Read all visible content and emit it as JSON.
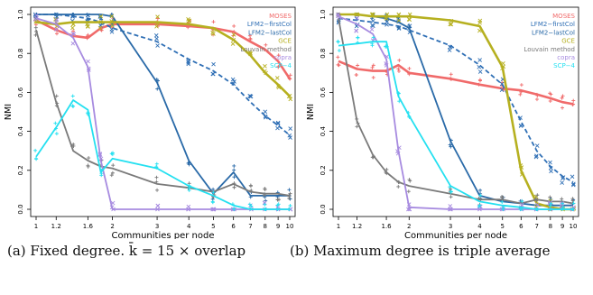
{
  "captions": {
    "a": "(a)  Fixed  degree.  k̄  =  15 × overlap",
    "b": "(b) Maximum degree is triple average"
  },
  "chart_data": [
    {
      "type": "line",
      "xlabel": "Communities per node",
      "ylabel": "NMI",
      "xscale": "log",
      "xlim": [
        1,
        10
      ],
      "ylim": [
        0,
        1
      ],
      "x_ticks": [
        1,
        1.2,
        1.6,
        2,
        3,
        4,
        5,
        6,
        7,
        8,
        9,
        10
      ],
      "y_ticks": [
        0.0,
        0.2,
        0.4,
        0.6,
        0.8,
        1.0
      ],
      "x": [
        1,
        1.2,
        1.4,
        1.6,
        1.8,
        2,
        3,
        4,
        5,
        6,
        7,
        8,
        9,
        10
      ],
      "legend_position": "top-right",
      "series": [
        {
          "name": "MOSES",
          "color": "#f06a6a",
          "dashed": false,
          "values": [
            0.97,
            0.92,
            0.89,
            0.88,
            0.93,
            0.95,
            0.95,
            0.94,
            0.93,
            0.91,
            0.86,
            0.82,
            0.76,
            0.67
          ]
        },
        {
          "name": "LFM2−firstCol",
          "color": "#2f6fb5",
          "dashed": true,
          "values": [
            1.0,
            1.0,
            0.99,
            0.98,
            0.96,
            0.93,
            0.86,
            0.77,
            0.71,
            0.64,
            0.55,
            0.48,
            0.43,
            0.38
          ]
        },
        {
          "name": "LFM2−lastCol",
          "color": "#2a6aa8",
          "dashed": false,
          "values": [
            1.0,
            1.0,
            1.0,
            1.0,
            1.0,
            0.99,
            0.65,
            0.25,
            0.08,
            0.19,
            0.07,
            0.07,
            0.07,
            0.07
          ]
        },
        {
          "name": "GCE",
          "color": "#b6b020",
          "dashed": false,
          "values": [
            0.96,
            0.95,
            0.96,
            0.96,
            0.96,
            0.96,
            0.96,
            0.95,
            0.93,
            0.87,
            0.79,
            0.7,
            0.64,
            0.58
          ]
        },
        {
          "name": "Louvain method",
          "color": "#7a7a7a",
          "dashed": false,
          "values": [
            0.92,
            0.55,
            0.3,
            0.25,
            0.22,
            0.21,
            0.13,
            0.11,
            0.09,
            0.13,
            0.09,
            0.08,
            0.08,
            0.07
          ]
        },
        {
          "name": "copra",
          "color": "#a78be0",
          "dashed": false,
          "values": [
            0.98,
            0.95,
            0.88,
            0.73,
            0.25,
            0.0,
            0.0,
            0.0,
            0.0,
            0.0,
            0.0,
            0.0,
            0.0,
            0.0
          ]
        },
        {
          "name": "SCP−4",
          "color": "#24e0f0",
          "dashed": false,
          "values": [
            0.27,
            0.42,
            0.56,
            0.51,
            0.19,
            0.26,
            0.21,
            0.12,
            0.07,
            0.02,
            0.0,
            0.0,
            0.0,
            0.0
          ]
        }
      ]
    },
    {
      "type": "line",
      "xlabel": "Communities per node",
      "ylabel": "NMI",
      "xscale": "log",
      "xlim": [
        1,
        10
      ],
      "ylim": [
        0,
        1
      ],
      "x_ticks": [
        1,
        1.2,
        1.6,
        2,
        3,
        4,
        5,
        6,
        7,
        8,
        9,
        10
      ],
      "y_ticks": [
        0.0,
        0.2,
        0.4,
        0.6,
        0.8,
        1.0
      ],
      "x": [
        1,
        1.2,
        1.4,
        1.6,
        1.8,
        2,
        3,
        4,
        5,
        6,
        7,
        8,
        9,
        10
      ],
      "legend_position": "top-right",
      "series": [
        {
          "name": "MOSES",
          "color": "#f06a6a",
          "dashed": false,
          "values": [
            0.76,
            0.72,
            0.71,
            0.71,
            0.74,
            0.7,
            0.67,
            0.64,
            0.62,
            0.61,
            0.59,
            0.57,
            0.55,
            0.54
          ]
        },
        {
          "name": "LFM2−firstCol",
          "color": "#2f6fb5",
          "dashed": true,
          "values": [
            0.98,
            0.97,
            0.96,
            0.95,
            0.94,
            0.92,
            0.84,
            0.74,
            0.64,
            0.45,
            0.3,
            0.22,
            0.17,
            0.14
          ]
        },
        {
          "name": "LFM2−lastCol",
          "color": "#2a6aa8",
          "dashed": false,
          "values": [
            1.0,
            1.0,
            0.99,
            0.98,
            0.96,
            0.93,
            0.35,
            0.07,
            0.04,
            0.03,
            0.02,
            0.02,
            0.02,
            0.02
          ]
        },
        {
          "name": "GCE",
          "color": "#b6b020",
          "dashed": false,
          "values": [
            1.0,
            1.0,
            0.99,
            0.99,
            0.99,
            0.99,
            0.97,
            0.94,
            0.73,
            0.2,
            0.03,
            0.01,
            0.0,
            0.0
          ]
        },
        {
          "name": "Louvain method",
          "color": "#7a7a7a",
          "dashed": false,
          "values": [
            0.98,
            0.45,
            0.28,
            0.19,
            0.14,
            0.12,
            0.08,
            0.05,
            0.05,
            0.03,
            0.05,
            0.04,
            0.04,
            0.03
          ]
        },
        {
          "name": "copra",
          "color": "#a78be0",
          "dashed": false,
          "values": [
            0.99,
            0.95,
            0.9,
            0.77,
            0.3,
            0.01,
            0.0,
            0.0,
            0.0,
            0.0,
            0.0,
            0.0,
            0.0,
            0.0
          ]
        },
        {
          "name": "SCP−4",
          "color": "#24e0f0",
          "dashed": false,
          "values": [
            0.84,
            0.85,
            0.86,
            0.86,
            0.58,
            0.48,
            0.12,
            0.04,
            0.02,
            0.01,
            0.0,
            0.0,
            0.0,
            0.0
          ]
        }
      ]
    }
  ]
}
